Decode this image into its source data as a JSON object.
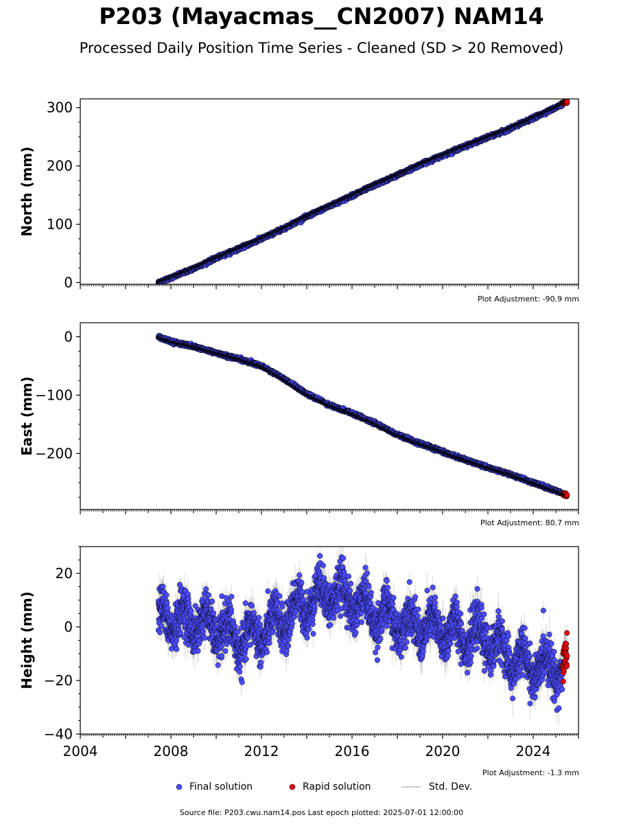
{
  "header": {
    "title": "P203 (Mayacmas__CN2007) NAM14",
    "subtitle": "Processed Daily Position Time Series - Cleaned (SD > 20 Removed)"
  },
  "footer": {
    "source": "Source file: P203.cwu.nam14.pos  Last epoch plotted: 2025-07-01 12:00:00"
  },
  "legend": {
    "final": "Final solution",
    "rapid": "Rapid solution",
    "stddev": "Std. Dev."
  },
  "colors": {
    "final": "#4b4bff",
    "rapid": "#e8000b",
    "stddev": "#888888",
    "edge": "#000000"
  },
  "chart_data": [
    {
      "type": "scatter",
      "id": "north",
      "ylabel": "North (mm)",
      "adjustment": "Plot Adjustment: -90.9 mm",
      "xlim": [
        2004,
        2026
      ],
      "ylim": [
        -3,
        315
      ],
      "yticks": [
        0,
        100,
        200,
        300
      ],
      "ytick_labels": [
        "0",
        "100",
        "200",
        "300"
      ],
      "start": 2007.45,
      "rapid_start": 2025.3,
      "end": 2025.5,
      "series": [
        {
          "x": [
            2007.45,
            2008,
            2009,
            2010,
            2011,
            2012,
            2013,
            2014,
            2015,
            2016,
            2017,
            2018,
            2019,
            2020,
            2021,
            2022,
            2023,
            2024,
            2025,
            2025.5
          ],
          "values": [
            0,
            8,
            24,
            42,
            58,
            75,
            93,
            113,
            131,
            149,
            167,
            184,
            202,
            218,
            234,
            249,
            264,
            282,
            300,
            311
          ]
        }
      ],
      "noise": 1.3
    },
    {
      "type": "scatter",
      "id": "east",
      "ylabel": "East (mm)",
      "adjustment": "Plot Adjustment: 80.7 mm",
      "xlim": [
        2004,
        2026
      ],
      "ylim": [
        -296,
        24
      ],
      "yticks": [
        0,
        -100,
        -200
      ],
      "ytick_labels": [
        "0",
        "−100",
        "−200"
      ],
      "start": 2007.45,
      "rapid_start": 2025.3,
      "end": 2025.5,
      "series": [
        {
          "x": [
            2007.45,
            2008,
            2009,
            2010,
            2011,
            2012,
            2013,
            2014,
            2015,
            2016,
            2017,
            2018,
            2019,
            2020,
            2021,
            2022,
            2023,
            2024,
            2025,
            2025.5
          ],
          "values": [
            0,
            -8,
            -17,
            -28,
            -38,
            -50,
            -72,
            -98,
            -117,
            -131,
            -148,
            -168,
            -183,
            -197,
            -211,
            -224,
            -236,
            -250,
            -264,
            -272
          ]
        }
      ],
      "noise": 1.3
    },
    {
      "type": "scatter",
      "id": "height",
      "ylabel": "Height (mm)",
      "adjustment": "Plot Adjustment: -1.3 mm",
      "xlim": [
        2004,
        2026
      ],
      "ylim": [
        -40,
        30
      ],
      "yticks": [
        20,
        0,
        -20,
        -40
      ],
      "ytick_labels": [
        "20",
        "0",
        "−20",
        "−40"
      ],
      "xticks": [
        2004,
        2008,
        2012,
        2016,
        2020,
        2024
      ],
      "xtick_labels": [
        "2004",
        "2008",
        "2012",
        "2016",
        "2020",
        "2024"
      ],
      "start": 2007.45,
      "rapid_start": 2025.3,
      "end": 2025.5,
      "series": [
        {
          "x": [
            2007.45,
            2008,
            2009,
            2010,
            2011,
            2012,
            2013,
            2014,
            2015,
            2016,
            2017,
            2018,
            2019,
            2020,
            2021,
            2022,
            2023,
            2024,
            2025,
            2025.5
          ],
          "values": [
            4,
            3,
            2,
            0,
            -5,
            -2,
            3,
            9,
            13,
            10,
            5,
            2,
            0,
            -1,
            -3,
            -4,
            -12,
            -15,
            -15,
            -15
          ]
        }
      ],
      "seasonal_amplitude": 5,
      "noise": 4
    }
  ]
}
